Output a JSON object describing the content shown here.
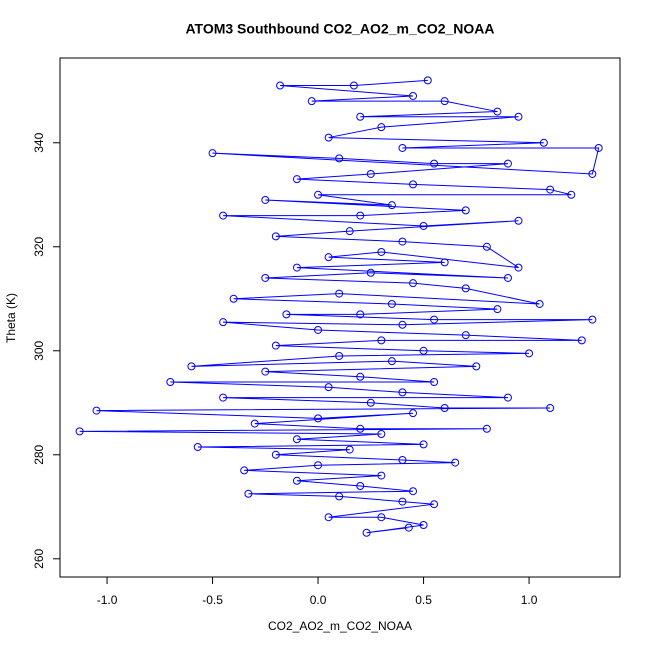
{
  "chart_data": {
    "type": "line",
    "marker": "open-circle",
    "title": "ATOM3 Southbound CO2_AO2_m_CO2_NOAA",
    "x_label": "CO2_AO2_m_CO2_NOAA",
    "y_label": "Theta (K)",
    "color": "#0000ff",
    "xlim": [
      -1.223,
      1.431
    ],
    "ylim": [
      256.5,
      356.3
    ],
    "xticks": [
      {
        "value": -1,
        "label": "-1.0"
      },
      -0.5,
      {
        "value": 0,
        "label": "0.0"
      },
      0.5,
      {
        "value": 1,
        "label": "1.0"
      }
    ],
    "yticks": [
      260,
      280,
      300,
      320,
      340
    ],
    "x": [
      0.52,
      0.17,
      -0.18,
      0.45,
      -0.03,
      0.6,
      0.85,
      0.2,
      0.95,
      0.3,
      0.05,
      1.07,
      0.4,
      1.33,
      1.3,
      -0.5,
      0.1,
      0.55,
      0.9,
      0.25,
      -0.1,
      0.45,
      1.1,
      1.2,
      0.0,
      0.35,
      -0.25,
      0.7,
      0.2,
      -0.45,
      0.5,
      0.95,
      0.15,
      -0.2,
      0.4,
      0.8,
      0.95,
      0.3,
      0.05,
      0.6,
      -0.1,
      0.9,
      0.25,
      -0.25,
      0.45,
      0.7,
      1.05,
      0.1,
      -0.4,
      0.35,
      0.85,
      0.2,
      -0.15,
      0.55,
      1.3,
      0.4,
      -0.45,
      0.0,
      0.7,
      1.25,
      0.3,
      -0.2,
      0.5,
      1.0,
      0.1,
      -0.6,
      0.35,
      0.75,
      -0.25,
      0.2,
      0.55,
      -0.7,
      0.05,
      0.4,
      0.9,
      -0.45,
      0.25,
      0.6,
      1.1,
      -1.05,
      0.0,
      0.45,
      -0.3,
      0.2,
      0.8,
      -1.13,
      0.3,
      -0.1,
      0.5,
      -0.57,
      0.15,
      -0.2,
      0.4,
      0.65,
      0.0,
      -0.35,
      0.3,
      -0.1,
      0.2,
      0.45,
      -0.33,
      0.1,
      0.4,
      0.55,
      0.05,
      0.3,
      0.5,
      0.23,
      0.43
    ],
    "values": [
      352,
      351,
      351,
      349,
      348,
      348,
      346,
      345,
      345,
      343,
      341,
      340,
      339,
      339,
      334,
      338,
      337,
      336,
      336,
      334,
      333,
      332,
      331,
      330,
      330,
      328,
      329,
      327,
      326,
      326,
      324,
      325,
      323,
      322,
      321,
      320,
      316,
      319,
      318,
      317,
      316,
      314,
      315,
      314,
      313,
      312,
      309,
      311,
      310,
      309,
      308,
      307,
      307,
      306,
      306,
      305,
      305.5,
      304,
      303,
      302,
      302,
      301,
      300,
      299.5,
      299,
      297,
      298,
      297,
      296,
      295,
      294,
      294,
      293,
      292,
      291,
      291,
      290,
      289,
      289,
      288.5,
      287,
      288,
      286,
      285,
      285,
      284.5,
      284,
      283,
      282,
      281.5,
      281,
      280,
      279,
      278.5,
      278,
      277,
      276,
      275,
      274,
      273,
      272.5,
      272,
      271,
      270.5,
      268,
      268,
      266.5,
      265,
      266
    ]
  }
}
